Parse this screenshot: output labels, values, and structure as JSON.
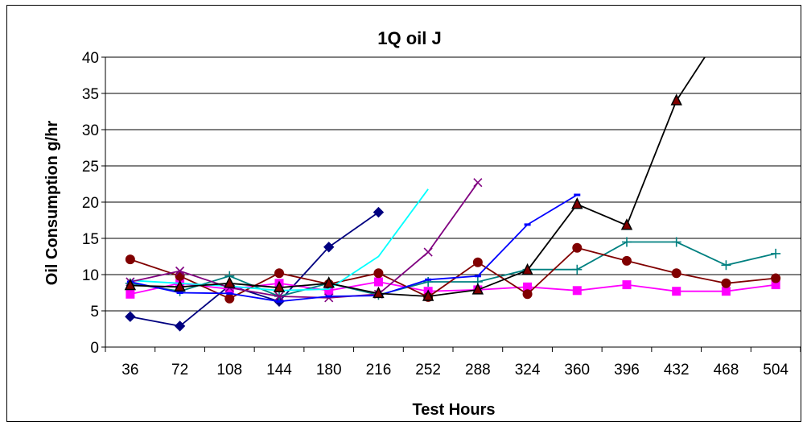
{
  "chart_data": {
    "type": "line",
    "title": "1Q  oil J",
    "xlabel": "Test Hours",
    "ylabel": "Oil Consumption g/hr",
    "categories": [
      "36",
      "72",
      "108",
      "144",
      "180",
      "216",
      "252",
      "288",
      "324",
      "360",
      "396",
      "432",
      "468",
      "504"
    ],
    "ylim": [
      0,
      40
    ],
    "yticks": [
      0,
      5,
      10,
      15,
      20,
      25,
      30,
      35,
      40
    ],
    "grid": "horizontal",
    "legend": "none",
    "series": [
      {
        "color": "#000080",
        "marker": "diamond",
        "values": [
          4.2,
          2.9,
          8.5,
          6.3,
          13.8,
          18.6,
          null,
          null,
          null,
          null,
          null,
          null,
          null,
          null
        ]
      },
      {
        "color": "#ff00ff",
        "marker": "square",
        "values": [
          7.3,
          8.8,
          8.0,
          8.8,
          7.8,
          9.0,
          7.7,
          7.9,
          8.3,
          7.8,
          8.6,
          7.7,
          7.7,
          8.6
        ]
      },
      {
        "color": "#008080",
        "marker": "plus",
        "values": [
          8.8,
          7.7,
          9.8,
          7.0,
          8.8,
          7.2,
          9.0,
          9.0,
          10.7,
          10.7,
          14.5,
          14.5,
          11.3,
          12.9
        ]
      },
      {
        "color": "#800000",
        "marker": "circle",
        "values": [
          12.1,
          9.8,
          6.7,
          10.2,
          8.7,
          10.2,
          6.9,
          11.7,
          7.3,
          13.7,
          11.9,
          10.2,
          8.8,
          9.5
        ]
      },
      {
        "color": "#00ffff",
        "marker": "none",
        "values": [
          9.2,
          8.8,
          8.4,
          7.8,
          8.0,
          12.5,
          21.8,
          null,
          null,
          null,
          null,
          null,
          null,
          null
        ]
      },
      {
        "color": "#800080",
        "marker": "x",
        "values": [
          9.0,
          10.5,
          8.2,
          7.0,
          6.8,
          7.3,
          13.1,
          22.7,
          null,
          null,
          null,
          null,
          null,
          null
        ]
      },
      {
        "color": "#0000ff",
        "marker": "dash",
        "values": [
          9.0,
          7.5,
          7.4,
          6.3,
          7.0,
          7.1,
          9.3,
          9.8,
          16.9,
          21.0,
          null,
          null,
          null,
          null
        ]
      },
      {
        "color": "#000000",
        "marker": "triangle",
        "values": [
          8.5,
          8.3,
          8.8,
          8.2,
          8.8,
          7.4,
          7.0,
          7.9,
          10.6,
          19.7,
          16.8,
          34.0,
          44.5,
          null
        ]
      }
    ]
  }
}
